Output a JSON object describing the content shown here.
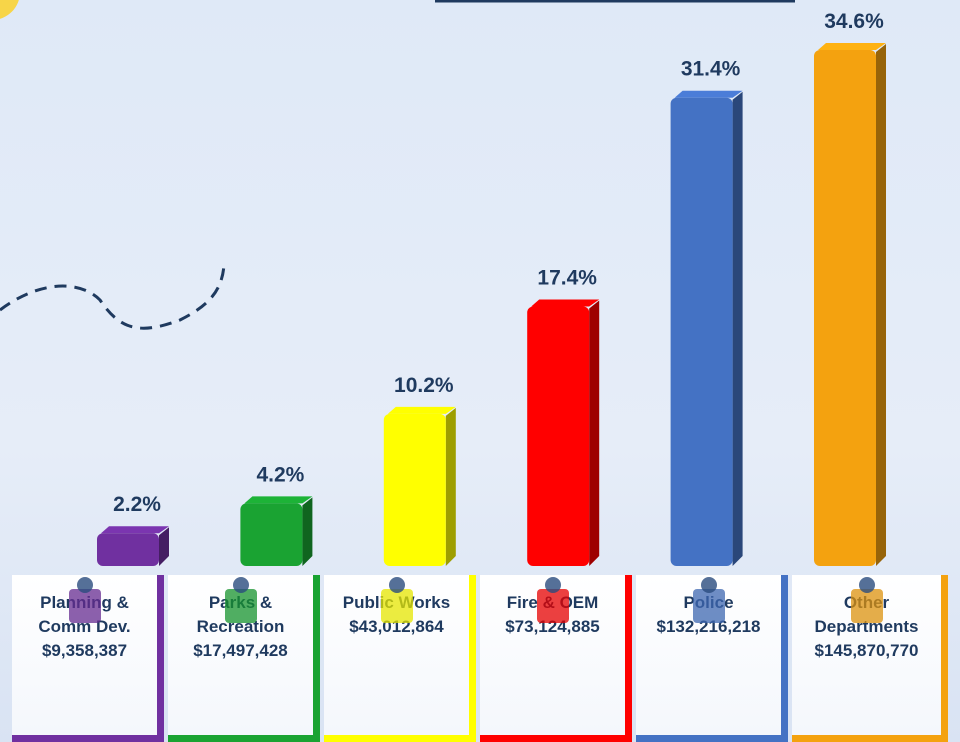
{
  "chart_data": {
    "type": "bar",
    "categories": [
      "Planning &\nComm Dev.",
      "Parks &\nRecreation",
      "Public Works",
      "Fire & OEM",
      "Police",
      "Other\nDepartments"
    ],
    "amounts": [
      "$9,358,387",
      "$17,497,428",
      "$43,012,864",
      "$73,124,885",
      "$132,216,218",
      "$145,870,770"
    ],
    "values": [
      2.2,
      4.2,
      10.2,
      17.4,
      31.4,
      34.6
    ],
    "value_labels": [
      "2.2%",
      "4.2%",
      "10.2%",
      "17.4%",
      "31.4%",
      "34.6%"
    ],
    "colors": [
      "#7030a0",
      "#1aa332",
      "#ffff00",
      "#ff0000",
      "#4472c4",
      "#f4a20f"
    ],
    "ylim": [
      0,
      35
    ]
  }
}
